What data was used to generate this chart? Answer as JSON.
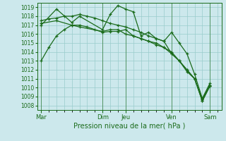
{
  "title": "",
  "xlabel": "Pression niveau de la mer( hPa )",
  "background_color": "#cce8ec",
  "grid_color": "#99cccc",
  "line_color": "#1a6b1a",
  "ylim": [
    1007.5,
    1019.5
  ],
  "yticks": [
    1008,
    1009,
    1010,
    1011,
    1012,
    1013,
    1014,
    1015,
    1016,
    1017,
    1018,
    1019
  ],
  "x_day_labels": [
    "Mar",
    "Dim",
    "Jeu",
    "Ven",
    "Sam"
  ],
  "x_day_positions": [
    0,
    8,
    11,
    17,
    22
  ],
  "xlim": [
    -0.5,
    23.5
  ],
  "vline_positions": [
    0,
    8,
    11,
    17,
    22
  ],
  "lines": [
    {
      "x": [
        0,
        1,
        2,
        3,
        4,
        5,
        6,
        7,
        8,
        9,
        10,
        11,
        12,
        13,
        14,
        15,
        16,
        17,
        18,
        19,
        20,
        21,
        22
      ],
      "y": [
        1013.0,
        1014.5,
        1015.8,
        1016.5,
        1017.0,
        1017.0,
        1016.8,
        1016.5,
        1016.2,
        1016.3,
        1016.3,
        1016.5,
        1015.8,
        1015.5,
        1015.2,
        1015.0,
        1014.5,
        1013.8,
        1013.0,
        1012.0,
        1011.0,
        1008.5,
        1010.2
      ],
      "marker": "+"
    },
    {
      "x": [
        0,
        1,
        2,
        3,
        4,
        5,
        6,
        7,
        8,
        9,
        10,
        11,
        12,
        13,
        14,
        15,
        16,
        17,
        18,
        19,
        20,
        21,
        22
      ],
      "y": [
        1017.5,
        1017.7,
        1017.8,
        1018.0,
        1018.0,
        1018.2,
        1018.0,
        1017.8,
        1017.5,
        1017.2,
        1017.0,
        1016.8,
        1016.5,
        1016.2,
        1015.8,
        1015.5,
        1015.2,
        1013.8,
        1013.0,
        1012.0,
        1011.0,
        1008.5,
        1010.2
      ],
      "marker": "+"
    },
    {
      "x": [
        0,
        2,
        4,
        5,
        8,
        9,
        10,
        11,
        12,
        13,
        14,
        15,
        16,
        17,
        18,
        19,
        20,
        21,
        22
      ],
      "y": [
        1017.0,
        1018.8,
        1017.3,
        1018.0,
        1016.5,
        1018.2,
        1019.2,
        1018.8,
        1018.5,
        1015.8,
        1016.2,
        1015.5,
        1015.2,
        1016.2,
        1015.0,
        1013.8,
        1011.5,
        1008.8,
        1010.5
      ],
      "marker": "+"
    },
    {
      "x": [
        0,
        2,
        4,
        5,
        8,
        9,
        10,
        11,
        12,
        13,
        14,
        15,
        16,
        17,
        18,
        19,
        20,
        21,
        22
      ],
      "y": [
        1017.2,
        1017.5,
        1017.0,
        1016.8,
        1016.3,
        1016.5,
        1016.5,
        1016.0,
        1015.8,
        1015.5,
        1015.2,
        1014.8,
        1014.5,
        1014.0,
        1013.0,
        1011.8,
        1011.0,
        1008.7,
        1010.3
      ],
      "marker": "+"
    }
  ]
}
